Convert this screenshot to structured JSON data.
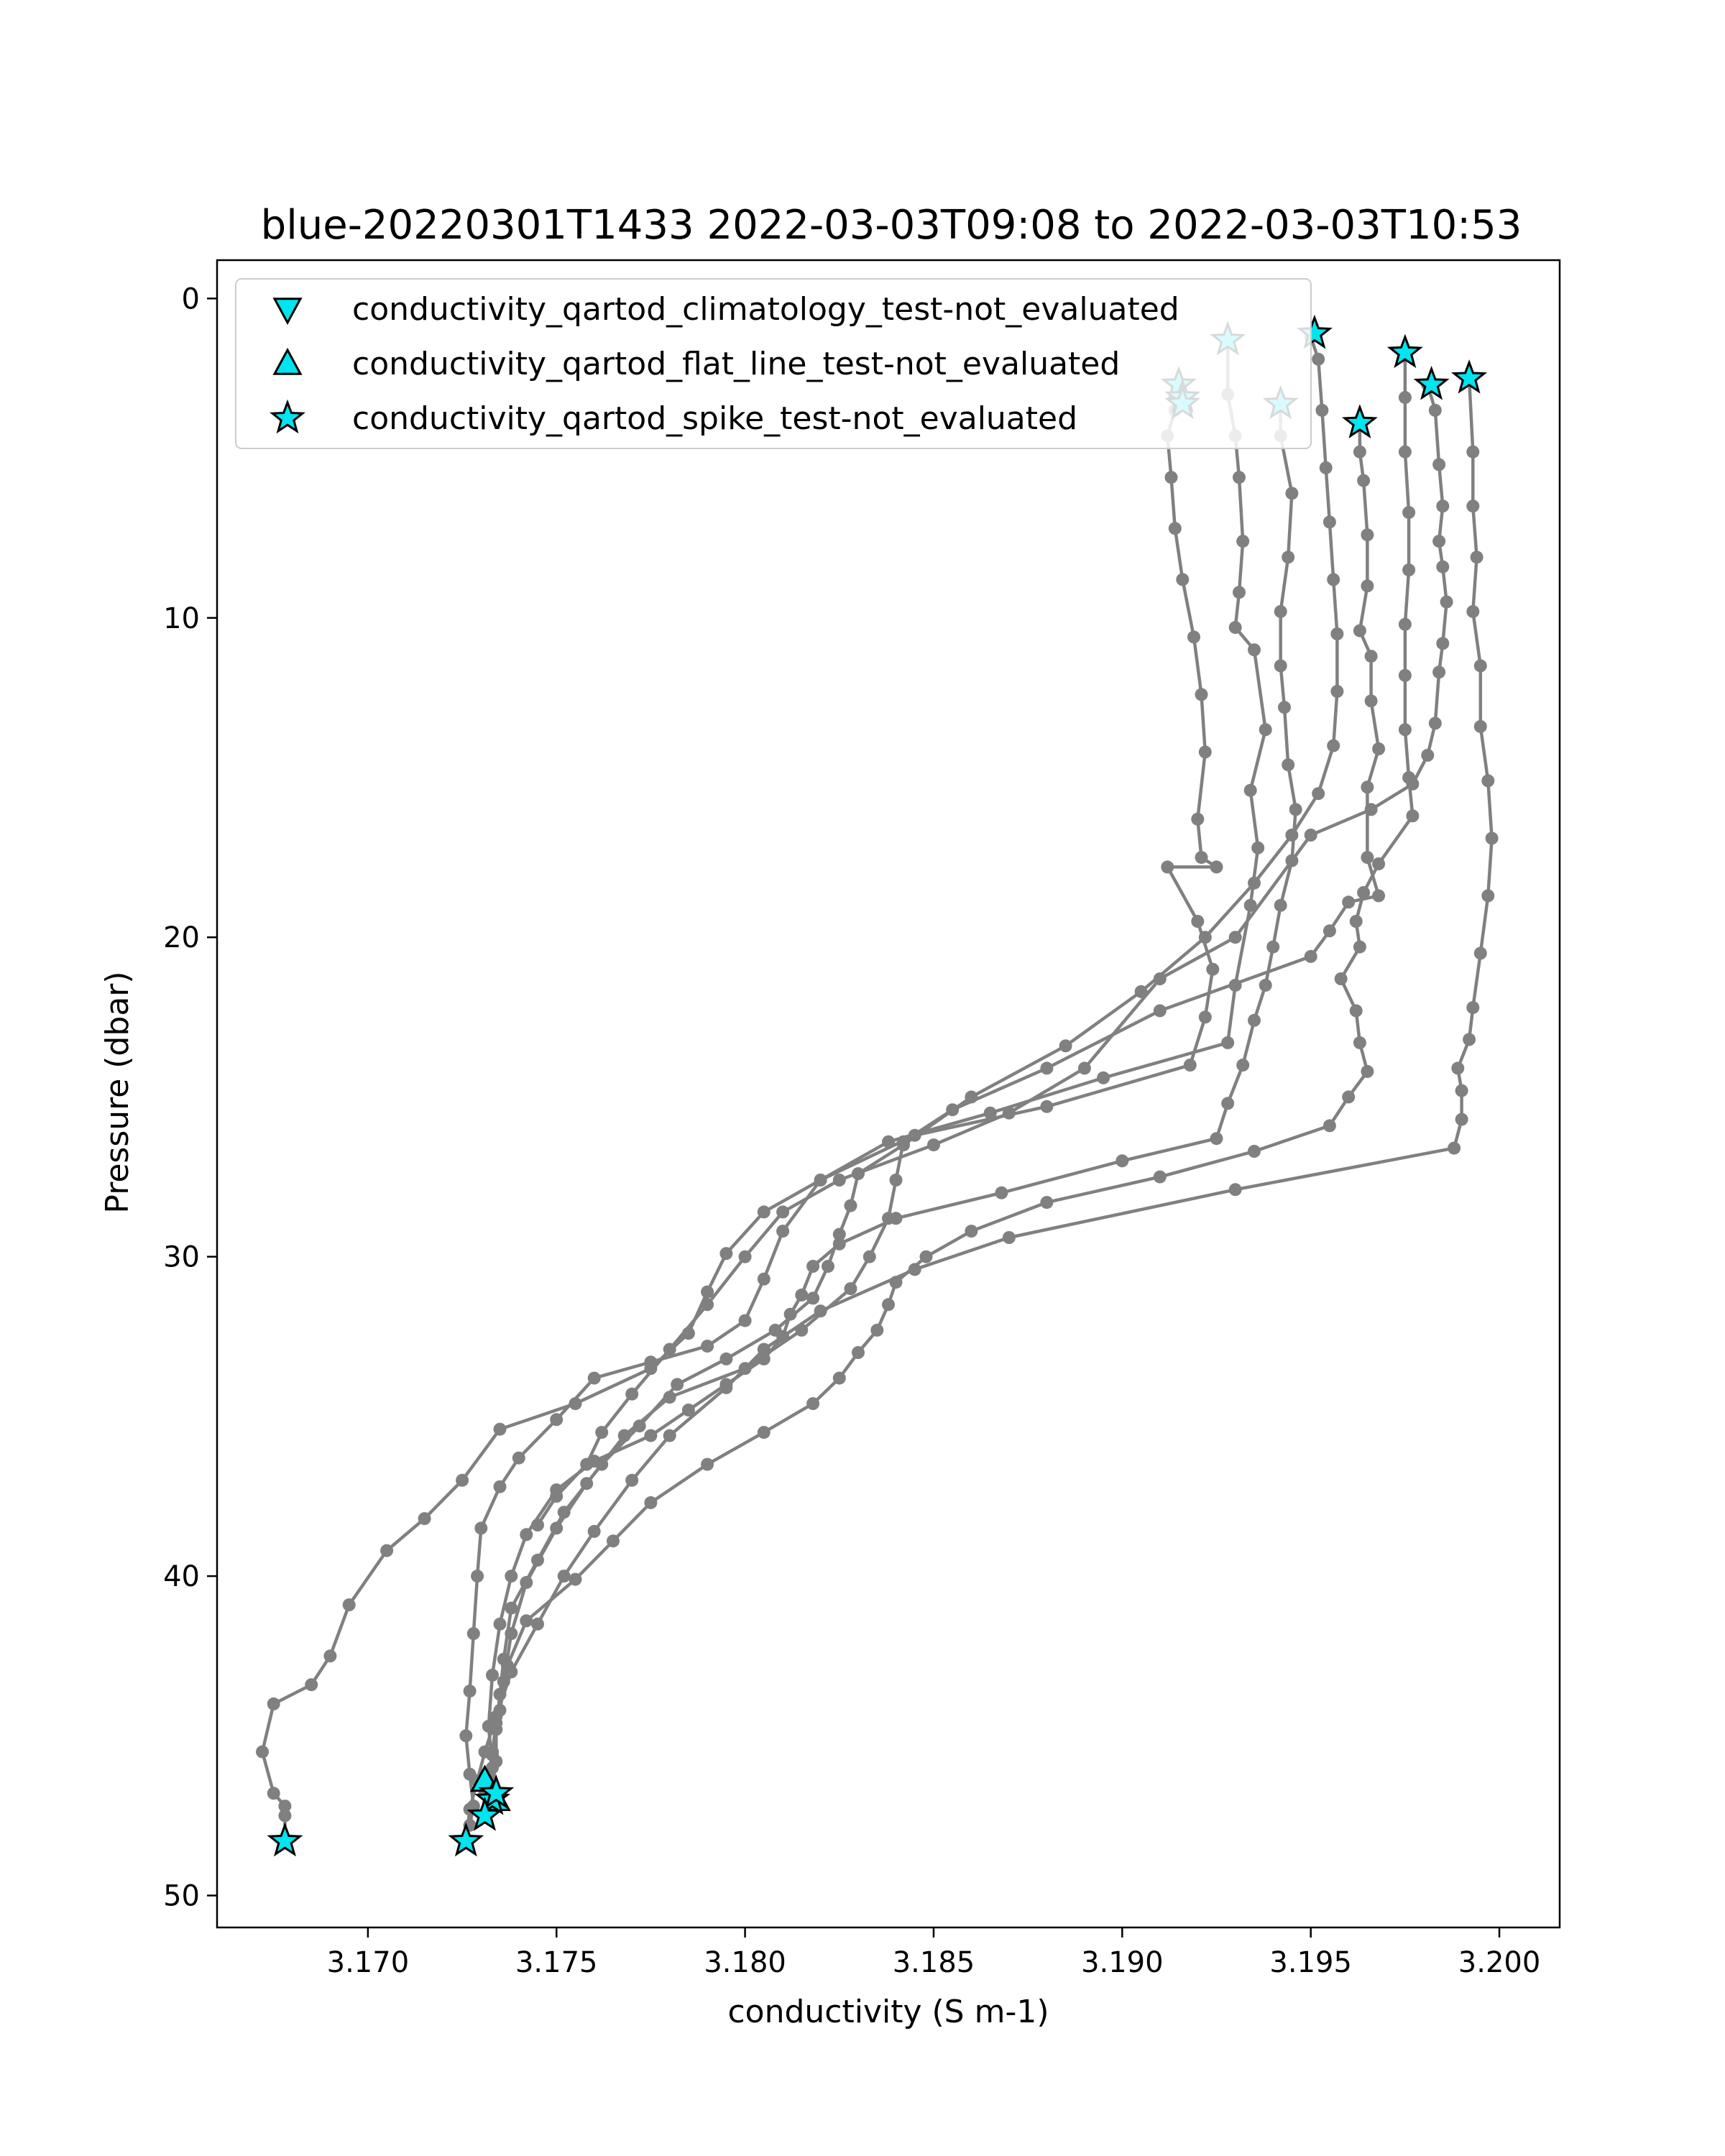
{
  "chart_data": {
    "type": "line",
    "title": "blue-20220301T1433 2022-03-03T09:08 to 2022-03-03T10:53",
    "xlabel": "conductivity (S m-1)",
    "ylabel": "Pressure (dbar)",
    "xlim": [
      3.166,
      3.2016
    ],
    "ylim": [
      51.0,
      -1.2
    ],
    "y_inverted": true,
    "xticks": [
      3.17,
      3.175,
      3.18,
      3.185,
      3.19,
      3.195,
      3.2
    ],
    "xtick_labels": [
      "3.170",
      "3.175",
      "3.180",
      "3.185",
      "3.190",
      "3.195",
      "3.200"
    ],
    "yticks": [
      0,
      10,
      20,
      30,
      40,
      50
    ],
    "ytick_labels": [
      "0",
      "10",
      "20",
      "30",
      "40",
      "50"
    ],
    "grid": false,
    "legend_placement": "top-left",
    "colors": {
      "series_line": "#808080",
      "flag_fill": "#00e5ee",
      "flag_edge": "#000000"
    },
    "legend": [
      {
        "label": "conductivity_qartod_climatology_test-not_evaluated",
        "marker": "triangle-down"
      },
      {
        "label": "conductivity_qartod_flat_line_test-not_evaluated",
        "marker": "triangle-up"
      },
      {
        "label": "conductivity_qartod_spike_test-not_evaluated",
        "marker": "star"
      }
    ],
    "series": [
      {
        "x": [
          3.1915,
          3.1914,
          3.1912,
          3.1913,
          3.1914,
          3.1916,
          3.1919,
          3.1921,
          3.1922,
          3.192,
          3.1921,
          3.1925,
          3.1912,
          3.192,
          3.1924,
          3.1922,
          3.1918,
          3.188,
          3.1845,
          3.182,
          3.1805,
          3.1795,
          3.179,
          3.1785,
          3.1775,
          3.1755,
          3.1735,
          3.1725,
          3.1715,
          3.1705,
          3.1695,
          3.169,
          3.1685,
          3.1675,
          3.1672,
          3.1675,
          3.1678,
          3.1678,
          3.1678
        ],
        "y": [
          2.8,
          3.5,
          4.3,
          5.6,
          7.2,
          8.8,
          10.6,
          12.4,
          14.2,
          16.3,
          17.5,
          17.8,
          17.8,
          19.5,
          21.0,
          22.5,
          24.0,
          25.3,
          26.2,
          27.6,
          28.6,
          29.9,
          31.1,
          32.4,
          33.5,
          34.6,
          35.4,
          37.0,
          38.2,
          39.2,
          40.9,
          42.5,
          43.4,
          44.0,
          45.5,
          46.8,
          47.2,
          47.5,
          48.3
        ]
      },
      {
        "x": [
          3.1928,
          3.1928,
          3.193,
          3.1931,
          3.1932,
          3.1931,
          3.193,
          3.1935,
          3.1938,
          3.1934,
          3.1936,
          3.1934,
          3.193,
          3.1928,
          3.1895,
          3.1865,
          3.1838,
          3.182,
          3.181,
          3.1805,
          3.18,
          3.179,
          3.1775,
          3.176,
          3.175,
          3.174,
          3.1735,
          3.173,
          3.1729,
          3.1728,
          3.1727,
          3.1726,
          3.1727,
          3.1728,
          3.1727,
          3.1726
        ],
        "y": [
          1.3,
          3.0,
          4.3,
          5.6,
          7.6,
          9.2,
          10.3,
          11.0,
          13.5,
          15.4,
          17.2,
          19.0,
          21.5,
          23.3,
          24.4,
          25.5,
          26.4,
          27.6,
          29.2,
          30.7,
          32.0,
          32.8,
          33.3,
          33.8,
          35.1,
          36.3,
          37.2,
          38.5,
          40.0,
          41.8,
          43.6,
          45.0,
          46.2,
          47.2,
          47.8,
          48.3
        ]
      },
      {
        "x": [
          3.1942,
          3.1942,
          3.1945,
          3.1944,
          3.1942,
          3.1942,
          3.1943,
          3.1944,
          3.1946,
          3.1945,
          3.1942,
          3.194,
          3.1938,
          3.1935,
          3.1932,
          3.1928,
          3.1925,
          3.19,
          3.1868,
          3.184,
          3.1825,
          3.1818,
          3.1815,
          3.1812,
          3.181,
          3.1805,
          3.1795,
          3.1785,
          3.1775,
          3.176,
          3.175,
          3.1742,
          3.1738,
          3.1735,
          3.1733,
          3.1732,
          3.1733,
          3.1732
        ],
        "y": [
          3.3,
          4.3,
          6.1,
          8.1,
          9.8,
          11.5,
          12.8,
          14.6,
          16.0,
          17.6,
          19.0,
          20.3,
          21.5,
          22.6,
          24.0,
          25.2,
          26.3,
          27.0,
          28.0,
          28.8,
          29.6,
          30.3,
          31.2,
          31.8,
          32.5,
          33.2,
          34.0,
          34.8,
          35.6,
          36.4,
          37.3,
          38.7,
          40.0,
          41.5,
          43.1,
          44.7,
          46.0,
          47.1
        ]
      },
      {
        "x": [
          3.195,
          3.1952,
          3.1953,
          3.1954,
          3.1955,
          3.1956,
          3.1957,
          3.1957,
          3.1956,
          3.1952,
          3.1945,
          3.1935,
          3.1922,
          3.1905,
          3.1885,
          3.186,
          3.1842,
          3.183,
          3.1828,
          3.1825,
          3.1822,
          3.1818,
          3.1808,
          3.1795,
          3.1782,
          3.1772,
          3.1762,
          3.1752,
          3.1745,
          3.1738,
          3.1736,
          3.1735,
          3.1734,
          3.1734,
          3.1733,
          3.1731
        ],
        "y": [
          1.2,
          1.9,
          3.5,
          5.3,
          7.0,
          8.8,
          10.5,
          12.3,
          14.0,
          15.5,
          16.8,
          18.3,
          20.0,
          21.7,
          23.4,
          25.0,
          26.5,
          27.4,
          28.4,
          29.3,
          30.3,
          31.3,
          32.3,
          33.2,
          34.0,
          35.3,
          36.5,
          38.0,
          39.5,
          41.0,
          42.6,
          43.7,
          44.8,
          45.8,
          46.6,
          47.5
        ]
      },
      {
        "x": [
          3.1963,
          3.1963,
          3.1964,
          3.1965,
          3.1965,
          3.1963,
          3.1966,
          3.1966,
          3.1968,
          3.1965,
          3.1965,
          3.1968,
          3.196,
          3.1955,
          3.195,
          3.191,
          3.188,
          3.1855,
          3.1842,
          3.184,
          3.1838,
          3.1833,
          3.1828,
          3.1815,
          3.18,
          3.178,
          3.1768,
          3.1758,
          3.175,
          3.1742,
          3.1738,
          3.1736,
          3.1734,
          3.1733,
          3.1732
        ],
        "y": [
          3.9,
          4.8,
          5.7,
          7.4,
          9.0,
          10.4,
          11.2,
          12.6,
          14.1,
          15.3,
          17.5,
          18.7,
          18.9,
          19.8,
          20.6,
          22.3,
          24.1,
          25.4,
          26.4,
          27.6,
          28.8,
          30.0,
          31.0,
          32.3,
          33.5,
          34.4,
          35.6,
          37.1,
          38.5,
          40.2,
          41.8,
          43.3,
          44.6,
          45.5,
          46.5
        ]
      },
      {
        "x": [
          3.1975,
          3.1975,
          3.1975,
          3.1976,
          3.1976,
          3.1975,
          3.1975,
          3.1975,
          3.1976,
          3.1977,
          3.1968,
          3.1964,
          3.1962,
          3.1963,
          3.1958,
          3.1962,
          3.1963,
          3.1965,
          3.196,
          3.1955,
          3.1935,
          3.191,
          3.188,
          3.186,
          3.1848,
          3.184,
          3.1838,
          3.1835,
          3.183,
          3.1825,
          3.1818,
          3.1805,
          3.179,
          3.1775,
          3.1765,
          3.1755,
          3.1742,
          3.1737,
          3.1735,
          3.1733,
          3.1731
        ],
        "y": [
          1.7,
          3.1,
          4.8,
          6.7,
          8.5,
          10.2,
          11.8,
          13.5,
          15.0,
          16.2,
          17.7,
          18.6,
          19.5,
          20.3,
          21.3,
          22.3,
          23.3,
          24.2,
          25.0,
          25.9,
          26.7,
          27.5,
          28.3,
          29.2,
          30.0,
          30.8,
          31.5,
          32.3,
          33.0,
          33.8,
          34.6,
          35.5,
          36.5,
          37.7,
          38.9,
          40.1,
          41.4,
          42.8,
          44.2,
          45.6,
          46.8
        ]
      },
      {
        "x": [
          3.1981,
          3.1983,
          3.1984,
          3.1985,
          3.1984,
          3.1985,
          3.1986,
          3.1985,
          3.1984,
          3.1983,
          3.1981,
          3.1977,
          3.1966,
          3.195,
          3.193,
          3.191,
          3.189,
          3.187,
          3.185,
          3.1825,
          3.181,
          3.18,
          3.179,
          3.178,
          3.177,
          3.1762,
          3.1758,
          3.175,
          3.1745
        ],
        "y": [
          2.7,
          3.5,
          5.2,
          6.5,
          7.6,
          8.4,
          9.5,
          10.8,
          11.7,
          13.3,
          14.3,
          15.2,
          16.0,
          16.8,
          20.0,
          21.3,
          24.1,
          25.5,
          26.5,
          27.6,
          28.6,
          30.0,
          31.5,
          32.9,
          34.3,
          35.5,
          36.5,
          37.5,
          38.4
        ]
      },
      {
        "x": [
          3.1992,
          3.1993,
          3.1993,
          3.1994,
          3.1993,
          3.1995,
          3.1995,
          3.1997,
          3.1998,
          3.1997,
          3.1995,
          3.1993,
          3.1992,
          3.1989,
          3.199,
          3.199,
          3.1988,
          3.193,
          3.187,
          3.1845,
          3.182,
          3.1805,
          3.1795,
          3.178,
          3.177,
          3.176,
          3.1752,
          3.1745,
          3.1738,
          3.1734,
          3.1731,
          3.1729,
          3.1727,
          3.1726
        ],
        "y": [
          2.5,
          4.8,
          6.5,
          8.1,
          9.8,
          11.5,
          13.4,
          15.1,
          16.9,
          18.7,
          20.5,
          22.2,
          23.2,
          24.1,
          24.8,
          25.7,
          26.6,
          27.9,
          29.4,
          30.4,
          31.7,
          32.9,
          34.1,
          35.6,
          37.0,
          38.6,
          40.0,
          41.5,
          43.0,
          44.4,
          45.5,
          46.4,
          47.3,
          48.3
        ]
      }
    ],
    "spike_flags": {
      "x": [
        3.1915,
        3.1916,
        3.1916,
        3.1928,
        3.1942,
        3.1951,
        3.1963,
        3.1975,
        3.1982,
        3.1992,
        3.1678,
        3.1726,
        3.1733,
        3.1734,
        3.1731
      ],
      "y": [
        2.7,
        3.1,
        3.3,
        1.3,
        3.3,
        1.1,
        3.9,
        1.7,
        2.7,
        2.5,
        48.3,
        48.3,
        47.0,
        46.8,
        47.5
      ]
    },
    "flat_line_flags": {
      "x": [
        3.1731,
        3.1734
      ],
      "y": [
        46.4,
        47.0
      ]
    }
  }
}
